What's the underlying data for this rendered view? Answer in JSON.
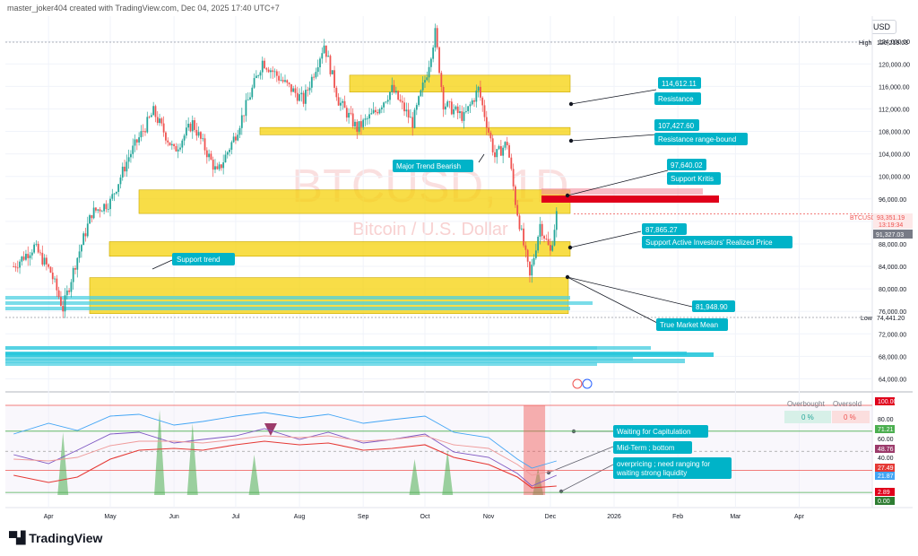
{
  "header": {
    "text": "master_joker404 created with TradingView.com, Dec 04, 2025 17:40 UTC+7"
  },
  "currency": "USD",
  "watermark": {
    "symbol": "BTCUSD, 1D",
    "name": "Bitcoin / U.S. Dollar"
  },
  "footer": {
    "logo": "TradingView",
    "logo_icon": "tradingview-logo-icon"
  },
  "colors": {
    "bull": "#26a69a",
    "bear": "#ef5350",
    "zone": "#f5d000",
    "label_bg": "#00b3c8",
    "rsi_line": "#7e57c2"
  },
  "chart_data": [
    {
      "type": "candlestick",
      "title": "BTCUSD, 1D",
      "ylim": [
        62000,
        128500
      ],
      "x_ticks": [
        "Apr",
        "May",
        "Jun",
        "Jul",
        "Aug",
        "Sep",
        "Oct",
        "Nov",
        "Dec",
        "2026",
        "Feb",
        "Mar",
        "Apr"
      ],
      "y_ticks": [
        "124,000.00",
        "120,000.00",
        "116,000.00",
        "112,000.00",
        "108,000.00",
        "104,000.00",
        "100,000.00",
        "96,000.00",
        "92,000.00",
        "88,000.00",
        "84,000.00",
        "80,000.00",
        "76,000.00",
        "72,000.00",
        "68,000.00",
        "64,000.00"
      ],
      "price_path": [
        [
          "2025-03-15",
          84000
        ],
        [
          "2025-03-25",
          87500
        ],
        [
          "2025-04-02",
          83000
        ],
        [
          "2025-04-08",
          76500
        ],
        [
          "2025-04-14",
          84500
        ],
        [
          "2025-04-22",
          93500
        ],
        [
          "2025-05-01",
          95500
        ],
        [
          "2025-05-10",
          103500
        ],
        [
          "2025-05-22",
          111500
        ],
        [
          "2025-06-01",
          104500
        ],
        [
          "2025-06-10",
          109500
        ],
        [
          "2025-06-22",
          100500
        ],
        [
          "2025-07-01",
          107500
        ],
        [
          "2025-07-10",
          116500
        ],
        [
          "2025-07-14",
          120500
        ],
        [
          "2025-07-25",
          116500
        ],
        [
          "2025-08-03",
          113500
        ],
        [
          "2025-08-13",
          123500
        ],
        [
          "2025-08-20",
          113500
        ],
        [
          "2025-08-29",
          108500
        ],
        [
          "2025-09-07",
          111500
        ],
        [
          "2025-09-15",
          115500
        ],
        [
          "2025-09-25",
          109500
        ],
        [
          "2025-10-02",
          118500
        ],
        [
          "2025-10-06",
          125500
        ],
        [
          "2025-10-10",
          113000
        ],
        [
          "2025-10-20",
          110500
        ],
        [
          "2025-10-27",
          115500
        ],
        [
          "2025-11-04",
          103500
        ],
        [
          "2025-11-10",
          106000
        ],
        [
          "2025-11-14",
          95500
        ],
        [
          "2025-11-21",
          82000
        ],
        [
          "2025-11-26",
          91500
        ],
        [
          "2025-12-01",
          86500
        ],
        [
          "2025-12-04",
          93300
        ]
      ],
      "high": {
        "label": "High",
        "value": "126,219.03"
      },
      "low": {
        "label": "Low",
        "value": "74,441.20"
      },
      "last": {
        "symbol": "BTCUSD",
        "price": "93,351.19",
        "countdown": "13:19:34",
        "ma": "91,327.03"
      },
      "zones": [
        {
          "name": "resistance-zone",
          "from": 115000,
          "to": 118000
        },
        {
          "name": "resistance-range-bound-zone",
          "from": 107400,
          "to": 108700
        },
        {
          "name": "support-kritis-zone",
          "from": 93400,
          "to": 97600
        },
        {
          "name": "support-realized-price-zone",
          "from": 85800,
          "to": 88400
        },
        {
          "name": "true-market-mean-zone",
          "from": 75600,
          "to": 82000
        }
      ],
      "annotations": [
        {
          "name": "value-114612",
          "text": "114,612.11"
        },
        {
          "name": "resistance",
          "text": "Resistance"
        },
        {
          "name": "value-107427",
          "text": "107,427.60"
        },
        {
          "name": "resistance-range-bound",
          "text": "Resistance range-bound"
        },
        {
          "name": "major-trend-bearish",
          "text": "Major Trend Bearish"
        },
        {
          "name": "value-97640",
          "text": "97,640.02"
        },
        {
          "name": "support-kritis",
          "text": "Support Kritis"
        },
        {
          "name": "value-87865",
          "text": "87,865.27"
        },
        {
          "name": "support-active-investors",
          "text": "Support Active Investors' Realized Price"
        },
        {
          "name": "support-trend",
          "text": "Support trend"
        },
        {
          "name": "value-81948",
          "text": "81,948.90"
        },
        {
          "name": "true-market-mean",
          "text": "True Market Mean"
        }
      ]
    },
    {
      "type": "line",
      "title": "Oscillator",
      "ylim": [
        0,
        100
      ],
      "x": [
        "2025-03-15",
        "2025-04-01",
        "2025-04-15",
        "2025-05-01",
        "2025-05-15",
        "2025-06-01",
        "2025-06-15",
        "2025-07-01",
        "2025-07-15",
        "2025-08-01",
        "2025-08-15",
        "2025-09-01",
        "2025-09-15",
        "2025-10-01",
        "2025-10-15",
        "2025-11-01",
        "2025-11-15",
        "2025-11-22",
        "2025-12-04"
      ],
      "series": [
        {
          "values": [
            68,
            80,
            72,
            88,
            90,
            78,
            82,
            88,
            92,
            86,
            90,
            80,
            84,
            88,
            70,
            64,
            40,
            30,
            38
          ]
        },
        {
          "values": [
            45,
            35,
            50,
            68,
            70,
            58,
            62,
            66,
            74,
            62,
            70,
            58,
            62,
            68,
            48,
            42,
            24,
            10,
            22
          ]
        },
        {
          "values": [
            40,
            38,
            42,
            55,
            60,
            60,
            58,
            62,
            66,
            64,
            66,
            60,
            62,
            66,
            56,
            52,
            34,
            22,
            28
          ]
        },
        {
          "values": [
            22,
            14,
            20,
            40,
            50,
            52,
            50,
            56,
            60,
            56,
            58,
            50,
            52,
            56,
            42,
            34,
            20,
            8,
            10
          ]
        }
      ],
      "axis_values": [
        "100.00",
        "80.00",
        "71.21",
        "60.00",
        "48.76",
        "40.00",
        "27.49",
        "21.87",
        "2.89",
        "0.00"
      ],
      "legend": {
        "overbought": "Overbought",
        "oversold": "Oversold",
        "overbought_value": "0 %",
        "oversold_value": "0 %"
      },
      "annotations": [
        {
          "name": "waiting-for-capitulation",
          "text": "Waiting for Capitulation"
        },
        {
          "name": "mid-term-bottom",
          "text": "Mid-Term ; bottom"
        },
        {
          "name": "overpricing-note-1",
          "text": "overpricing ; need ranging for"
        },
        {
          "name": "overpricing-note-2",
          "text": "waiting strong liquidity"
        }
      ]
    }
  ]
}
